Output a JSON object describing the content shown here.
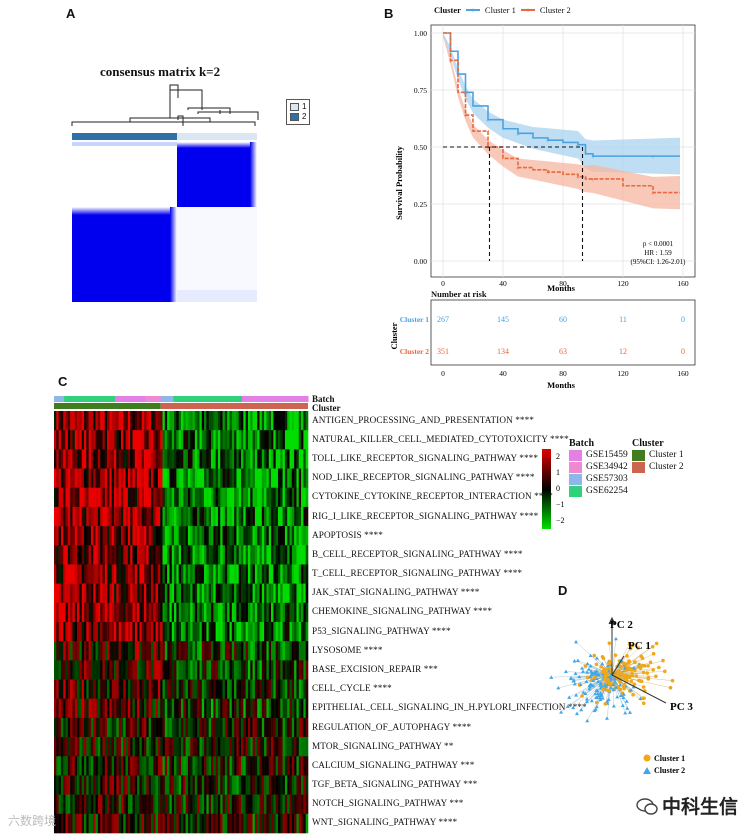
{
  "panel_labels": {
    "a": "A",
    "b": "B",
    "c": "C",
    "d": "D"
  },
  "panelA": {
    "title": "consensus matrix k=2",
    "legend": [
      {
        "label": "1",
        "color": "#dbe6f5"
      },
      {
        "label": "2",
        "color": "#2f70a8"
      }
    ]
  },
  "panelB": {
    "legend_title": "Cluster",
    "series": [
      {
        "name": "Cluster 1",
        "color": "#4aa3df",
        "fill": "#a9d3f0"
      },
      {
        "name": "Cluster 2",
        "color": "#e8683f",
        "fill": "#f5b7a0"
      }
    ],
    "ylabel": "Survival Probability",
    "xlabel": "Months",
    "yticks": [
      "1.00",
      "0.75",
      "0.50",
      "0.25",
      "0.00"
    ],
    "xticks": [
      "0",
      "40",
      "80",
      "120",
      "160"
    ],
    "stats": {
      "p": "p < 0.0001",
      "hr": "HR : 1.59",
      "ci": "(95%CI: 1.26-2.01)"
    },
    "risk_title": "Number at risk",
    "risk_ylabel": "Cluster",
    "risk_rows": [
      {
        "label": "Cluster 1",
        "values": [
          "267",
          "145",
          "60",
          "11",
          "0"
        ]
      },
      {
        "label": "Cluster 2",
        "values": [
          "351",
          "134",
          "63",
          "12",
          "0"
        ]
      }
    ],
    "risk_xlabel": "Months"
  },
  "chart_data": {
    "type": "line",
    "title": "",
    "xlabel": "Months",
    "ylabel": "Survival Probability",
    "xlim": [
      0,
      160
    ],
    "ylim": [
      0,
      1
    ],
    "series": [
      {
        "name": "Cluster 1",
        "x": [
          0,
          5,
          10,
          15,
          20,
          30,
          40,
          50,
          60,
          70,
          80,
          90,
          95,
          100,
          120,
          140,
          158
        ],
        "y": [
          1.0,
          0.92,
          0.82,
          0.74,
          0.68,
          0.62,
          0.58,
          0.56,
          0.54,
          0.53,
          0.52,
          0.51,
          0.47,
          0.46,
          0.46,
          0.46,
          0.46
        ]
      },
      {
        "name": "Cluster 2",
        "x": [
          0,
          5,
          10,
          15,
          20,
          30,
          40,
          50,
          60,
          70,
          80,
          90,
          95,
          100,
          120,
          140,
          158
        ],
        "y": [
          1.0,
          0.88,
          0.74,
          0.64,
          0.57,
          0.5,
          0.45,
          0.41,
          0.4,
          0.39,
          0.38,
          0.37,
          0.36,
          0.36,
          0.33,
          0.3,
          0.3
        ]
      }
    ],
    "median_months": {
      "Cluster 2": 31,
      "Cluster 1": 93
    }
  },
  "panelC": {
    "row_labels": {
      "batch": "Batch",
      "cluster": "Cluster"
    },
    "pathways": [
      "ANTIGEN_PROCESSING_AND_PRESENTATION ****",
      "NATURAL_KILLER_CELL_MEDIATED_CYTOTOXICITY ****",
      "TOLL_LIKE_RECEPTOR_SIGNALING_PATHWAY ****",
      "NOD_LIKE_RECEPTOR_SIGNALING_PATHWAY ****",
      "CYTOKINE_CYTOKINE_RECEPTOR_INTERACTION ****",
      "RIG_I_LIKE_RECEPTOR_SIGNALING_PATHWAY ****",
      "APOPTOSIS ****",
      "B_CELL_RECEPTOR_SIGNALING_PATHWAY ****",
      "T_CELL_RECEPTOR_SIGNALING_PATHWAY ****",
      "JAK_STAT_SIGNALING_PATHWAY ****",
      "CHEMOKINE_SIGNALING_PATHWAY ****",
      "P53_SIGNALING_PATHWAY ****",
      "LYSOSOME ****",
      "BASE_EXCISION_REPAIR ***",
      "CELL_CYCLE ****",
      "EPITHELIAL_CELL_SIGNALING_IN_H.PYLORI_INFECTION ****",
      "REGULATION_OF_AUTOPHAGY ****",
      "MTOR_SIGNALING_PATHWAY **",
      "CALCIUM_SIGNALING_PATHWAY ***",
      "TGF_BETA_SIGNALING_PATHWAY ***",
      "NOTCH_SIGNALING_PATHWAY ***",
      "WNT_SIGNALING_PATHWAY ****"
    ],
    "colorbar_ticks": [
      "2",
      "1",
      "0",
      "−1",
      "−2"
    ],
    "batch_legend": {
      "title": "Batch",
      "items": [
        {
          "label": "GSE15459",
          "color": "#e47fe6"
        },
        {
          "label": "GSE34942",
          "color": "#ee8ad2"
        },
        {
          "label": "GSE57303",
          "color": "#8fb6e8"
        },
        {
          "label": "GSE62254",
          "color": "#2fd27b"
        }
      ]
    },
    "cluster_legend": {
      "title": "Cluster",
      "items": [
        {
          "label": "Cluster 1",
          "color": "#3f7d1e"
        },
        {
          "label": "Cluster 2",
          "color": "#cc6450"
        }
      ]
    }
  },
  "panelD": {
    "axes": [
      "PC 2",
      "PC 1",
      "PC 3"
    ],
    "legend": [
      {
        "label": "Cluster 1",
        "color": "#f0a818"
      },
      {
        "label": "Cluster 2",
        "color": "#41a7e6"
      }
    ]
  },
  "watermarks": {
    "left": "六数跨境",
    "right": "中科生信"
  }
}
